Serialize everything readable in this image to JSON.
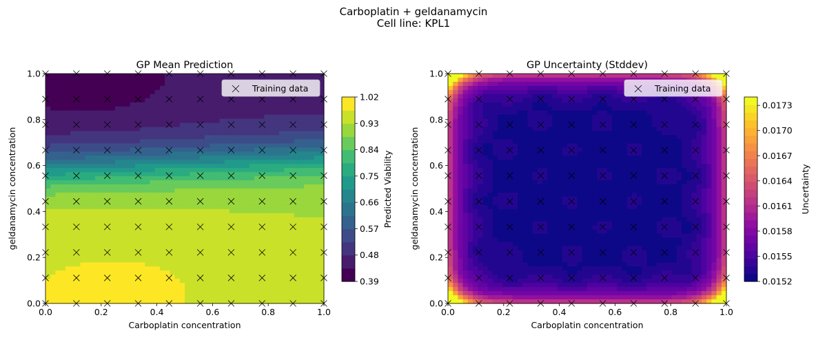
{
  "figure": {
    "title_line1": "Carboplatin + geldanamycin",
    "title_line2": "Cell line: KPL1"
  },
  "chart_data": [
    {
      "type": "heatmap",
      "title": "GP Mean Prediction",
      "xlabel": "Carboplatin concentration",
      "ylabel": "geldanamycin concentration",
      "xlim": [
        0.0,
        1.0
      ],
      "ylim": [
        0.0,
        1.0
      ],
      "xticks": [
        "0.0",
        "0.2",
        "0.4",
        "0.6",
        "0.8",
        "1.0"
      ],
      "yticks": [
        "0.0",
        "0.2",
        "0.4",
        "0.6",
        "0.8",
        "1.0"
      ],
      "colorbar": {
        "label": "Predicted Viability",
        "colormap": "viridis",
        "range": [
          0.39,
          1.02
        ],
        "ticks": [
          "0.39",
          "0.48",
          "0.57",
          "0.66",
          "0.75",
          "0.84",
          "0.93",
          "1.02"
        ]
      },
      "legend": {
        "label": "Training data",
        "marker": "x",
        "location": "upper right"
      },
      "training_grid": [
        0.0,
        0.111,
        0.222,
        0.333,
        0.444,
        0.556,
        0.667,
        0.778,
        0.889,
        1.0
      ]
    },
    {
      "type": "heatmap",
      "title": "GP Uncertainty (Stddev)",
      "xlabel": "Carboplatin concentration",
      "ylabel": "geldanamycin concentration",
      "xlim": [
        0.0,
        1.0
      ],
      "ylim": [
        0.0,
        1.0
      ],
      "xticks": [
        "0.0",
        "0.2",
        "0.4",
        "0.6",
        "0.8",
        "1.0"
      ],
      "yticks": [
        "0.0",
        "0.2",
        "0.4",
        "0.6",
        "0.8",
        "1.0"
      ],
      "colorbar": {
        "label": "Uncertainty",
        "colormap": "plasma",
        "range": [
          0.0152,
          0.0174
        ],
        "ticks": [
          "0.0152",
          "0.0155",
          "0.0158",
          "0.0161",
          "0.0164",
          "0.0167",
          "0.0170",
          "0.0173"
        ]
      },
      "legend": {
        "label": "Training data",
        "marker": "x",
        "location": "upper right"
      },
      "training_grid": [
        0.0,
        0.111,
        0.222,
        0.333,
        0.444,
        0.556,
        0.667,
        0.778,
        0.889,
        1.0
      ]
    }
  ]
}
